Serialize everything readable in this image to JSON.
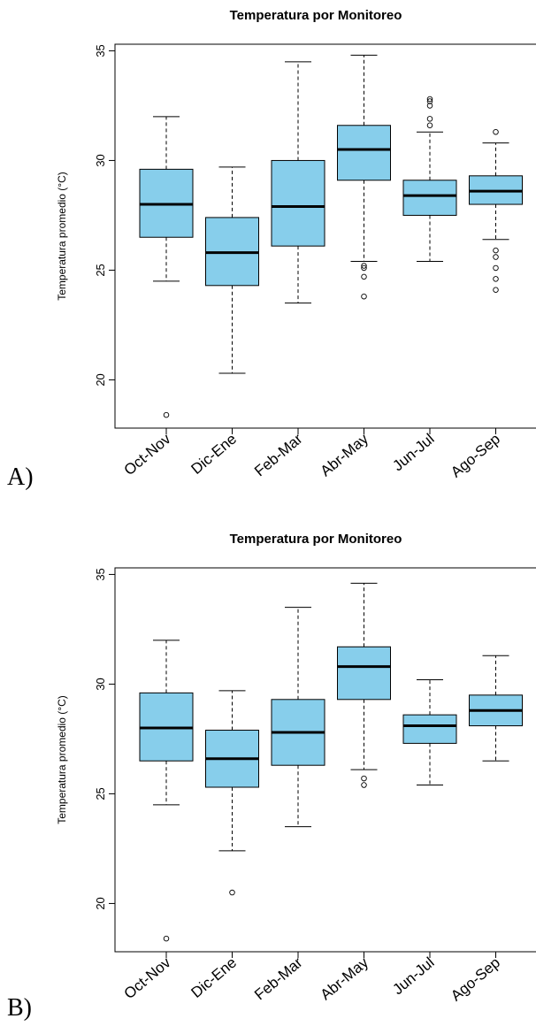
{
  "chart_data": [
    {
      "type": "boxplot",
      "panel_label": "A)",
      "title": "Temperatura por Monitoreo",
      "ylabel": "Temperatura promedio (°C)",
      "xlabel": "",
      "ylim": [
        17.8,
        35.3
      ],
      "yticks": [
        20,
        25,
        30,
        35
      ],
      "categories": [
        "Oct-Nov",
        "Dic-Ene",
        "Feb-Mar",
        "Abr-May",
        "Jun-Jul",
        "Ago-Sep"
      ],
      "box_color": "#87CEEB",
      "boxes": [
        {
          "whisker_low": 24.5,
          "q1": 26.5,
          "median": 28.0,
          "q3": 29.6,
          "whisker_high": 32.0,
          "outliers": [
            18.4
          ]
        },
        {
          "whisker_low": 20.3,
          "q1": 24.3,
          "median": 25.8,
          "q3": 27.4,
          "whisker_high": 29.7,
          "outliers": []
        },
        {
          "whisker_low": 23.5,
          "q1": 26.1,
          "median": 27.9,
          "q3": 30.0,
          "whisker_high": 34.5,
          "outliers": []
        },
        {
          "whisker_low": 25.4,
          "q1": 29.1,
          "median": 30.5,
          "q3": 31.6,
          "whisker_high": 34.8,
          "outliers": [
            25.2,
            25.1,
            24.7,
            23.8
          ]
        },
        {
          "whisker_low": 25.4,
          "q1": 27.5,
          "median": 28.4,
          "q3": 29.1,
          "whisker_high": 31.3,
          "outliers": [
            31.6,
            31.9,
            32.5,
            32.7,
            32.8
          ]
        },
        {
          "whisker_low": 26.4,
          "q1": 28.0,
          "median": 28.6,
          "q3": 29.3,
          "whisker_high": 30.8,
          "outliers": [
            31.3,
            25.9,
            25.6,
            25.1,
            24.6,
            24.1
          ]
        }
      ]
    },
    {
      "type": "boxplot",
      "panel_label": "B)",
      "title": "Temperatura por Monitoreo",
      "ylabel": "Temperatura promedio (°C)",
      "xlabel": "",
      "ylim": [
        17.8,
        35.3
      ],
      "yticks": [
        20,
        25,
        30,
        35
      ],
      "categories": [
        "Oct-Nov",
        "Dic-Ene",
        "Feb-Mar",
        "Abr-May",
        "Jun-Jul",
        "Ago-Sep"
      ],
      "box_color": "#87CEEB",
      "boxes": [
        {
          "whisker_low": 24.5,
          "q1": 26.5,
          "median": 28.0,
          "q3": 29.6,
          "whisker_high": 32.0,
          "outliers": [
            18.4
          ]
        },
        {
          "whisker_low": 22.4,
          "q1": 25.3,
          "median": 26.6,
          "q3": 27.9,
          "whisker_high": 29.7,
          "outliers": [
            20.5
          ]
        },
        {
          "whisker_low": 23.5,
          "q1": 26.3,
          "median": 27.8,
          "q3": 29.3,
          "whisker_high": 33.5,
          "outliers": []
        },
        {
          "whisker_low": 26.1,
          "q1": 29.3,
          "median": 30.8,
          "q3": 31.7,
          "whisker_high": 34.6,
          "outliers": [
            25.7,
            25.4
          ]
        },
        {
          "whisker_low": 25.4,
          "q1": 27.3,
          "median": 28.1,
          "q3": 28.6,
          "whisker_high": 30.2,
          "outliers": []
        },
        {
          "whisker_low": 26.5,
          "q1": 28.1,
          "median": 28.8,
          "q3": 29.5,
          "whisker_high": 31.3,
          "outliers": []
        }
      ]
    }
  ]
}
